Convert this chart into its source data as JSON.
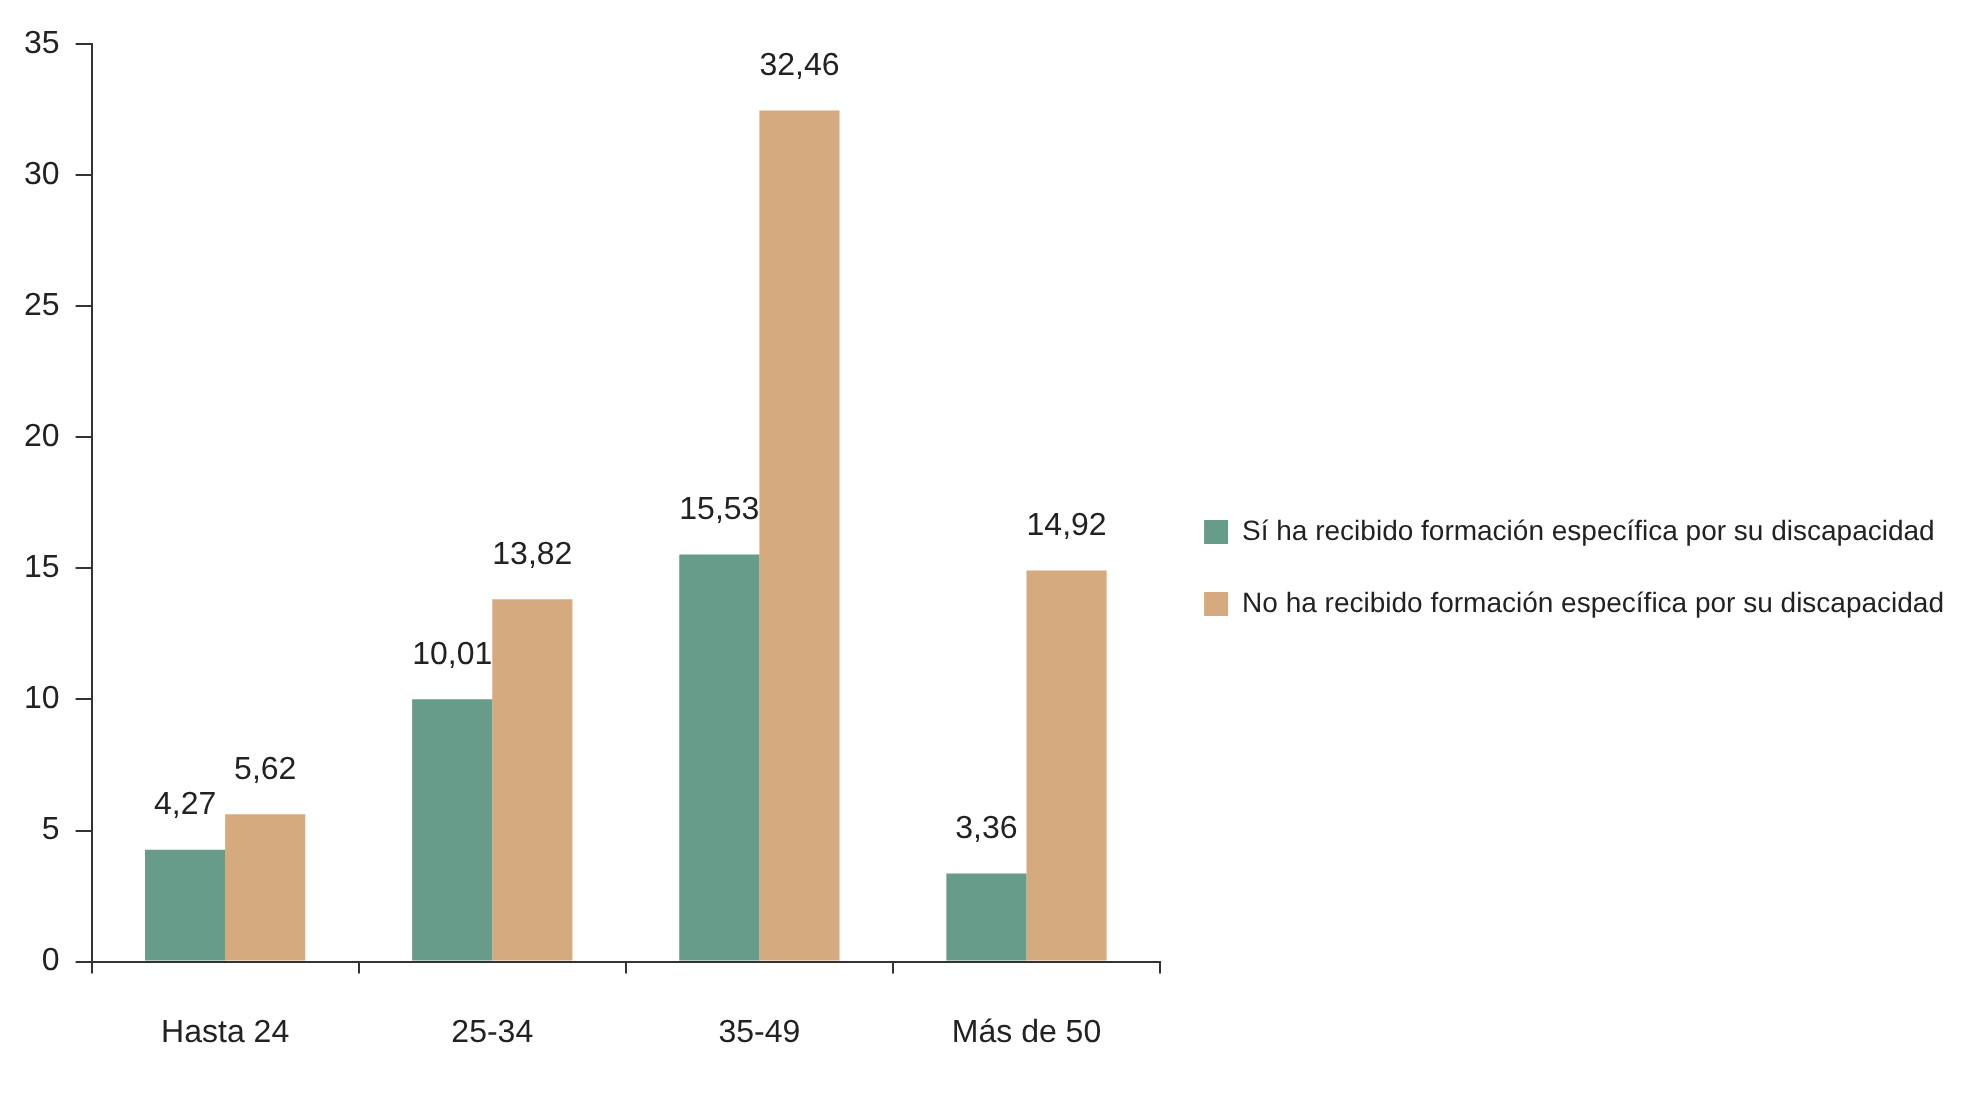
{
  "chart_data": {
    "type": "bar",
    "categories": [
      "Hasta 24",
      "25-34",
      "35-49",
      "Más de 50"
    ],
    "series": [
      {
        "name": "Sí ha recibido formación específica por su discapacidad",
        "color": "#669c89",
        "values": [
          4.27,
          10.01,
          15.53,
          3.36
        ],
        "value_labels": [
          "4,27",
          "10,01",
          "15,53",
          "3,36"
        ]
      },
      {
        "name": "No ha recibido formación específica por su discapacidad",
        "color": "#d5aa7f",
        "values": [
          5.62,
          13.82,
          32.46,
          14.92
        ],
        "value_labels": [
          "5,62",
          "13,82",
          "32,46",
          "14,92"
        ]
      }
    ],
    "ylim": [
      0,
      35
    ],
    "yticks": [
      0,
      5,
      10,
      15,
      20,
      25,
      30,
      35
    ],
    "legend": "right"
  }
}
